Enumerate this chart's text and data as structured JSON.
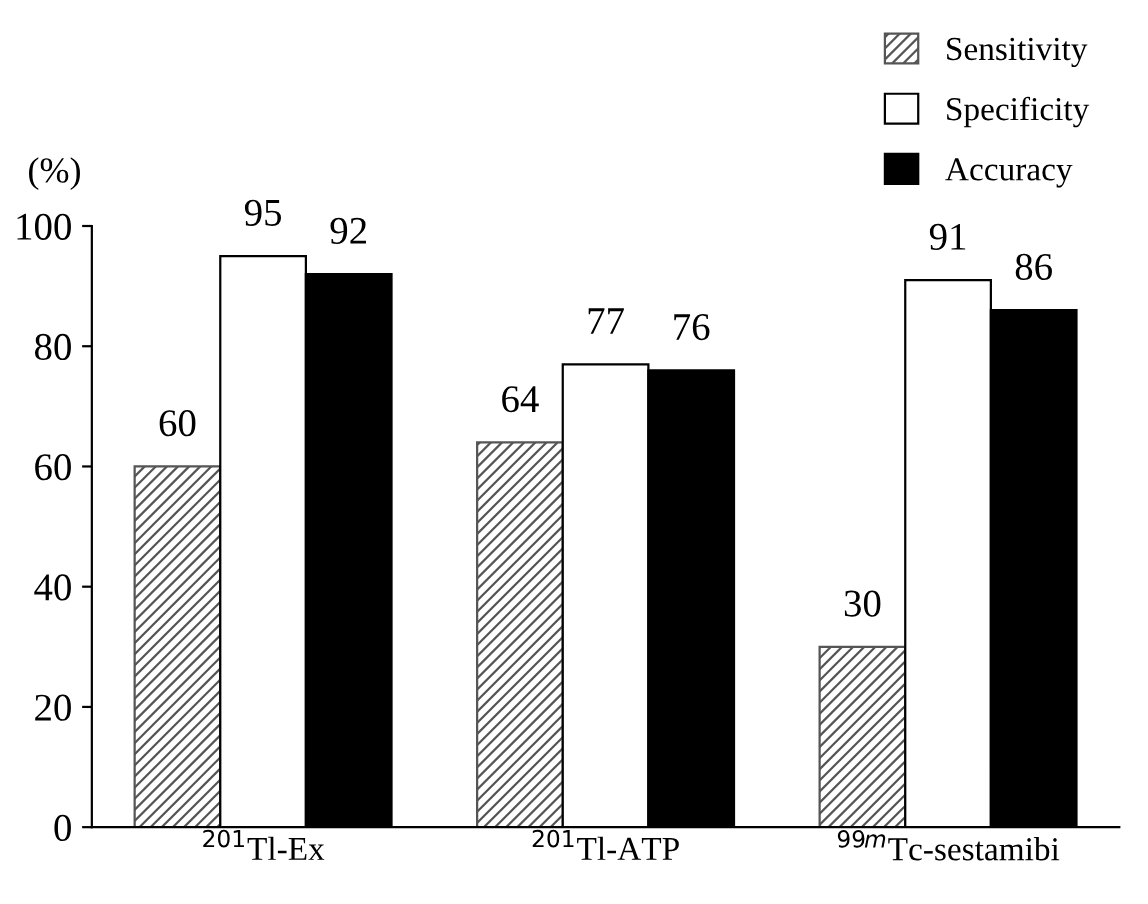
{
  "chart_data": {
    "type": "bar",
    "ylabel": "(%)",
    "categories": [
      "$^{201}$Tl-Ex",
      "$^{201}$Tl-ATP",
      "$^{99m}$Tc-sestamibi"
    ],
    "series": [
      {
        "name": "Sensitivity",
        "color": "#555555",
        "values": [
          60,
          64,
          30
        ]
      },
      {
        "name": "Specificity",
        "color": "#ffffff",
        "values": [
          95,
          77,
          91
        ]
      },
      {
        "name": "Accuracy",
        "color": "#000000",
        "values": [
          92,
          76,
          86
        ]
      }
    ],
    "ylim": [
      0,
      100
    ],
    "yticks": [
      0,
      20,
      40,
      60,
      80,
      100
    ],
    "grid": false,
    "legend": "top right",
    "data_labels": true
  }
}
